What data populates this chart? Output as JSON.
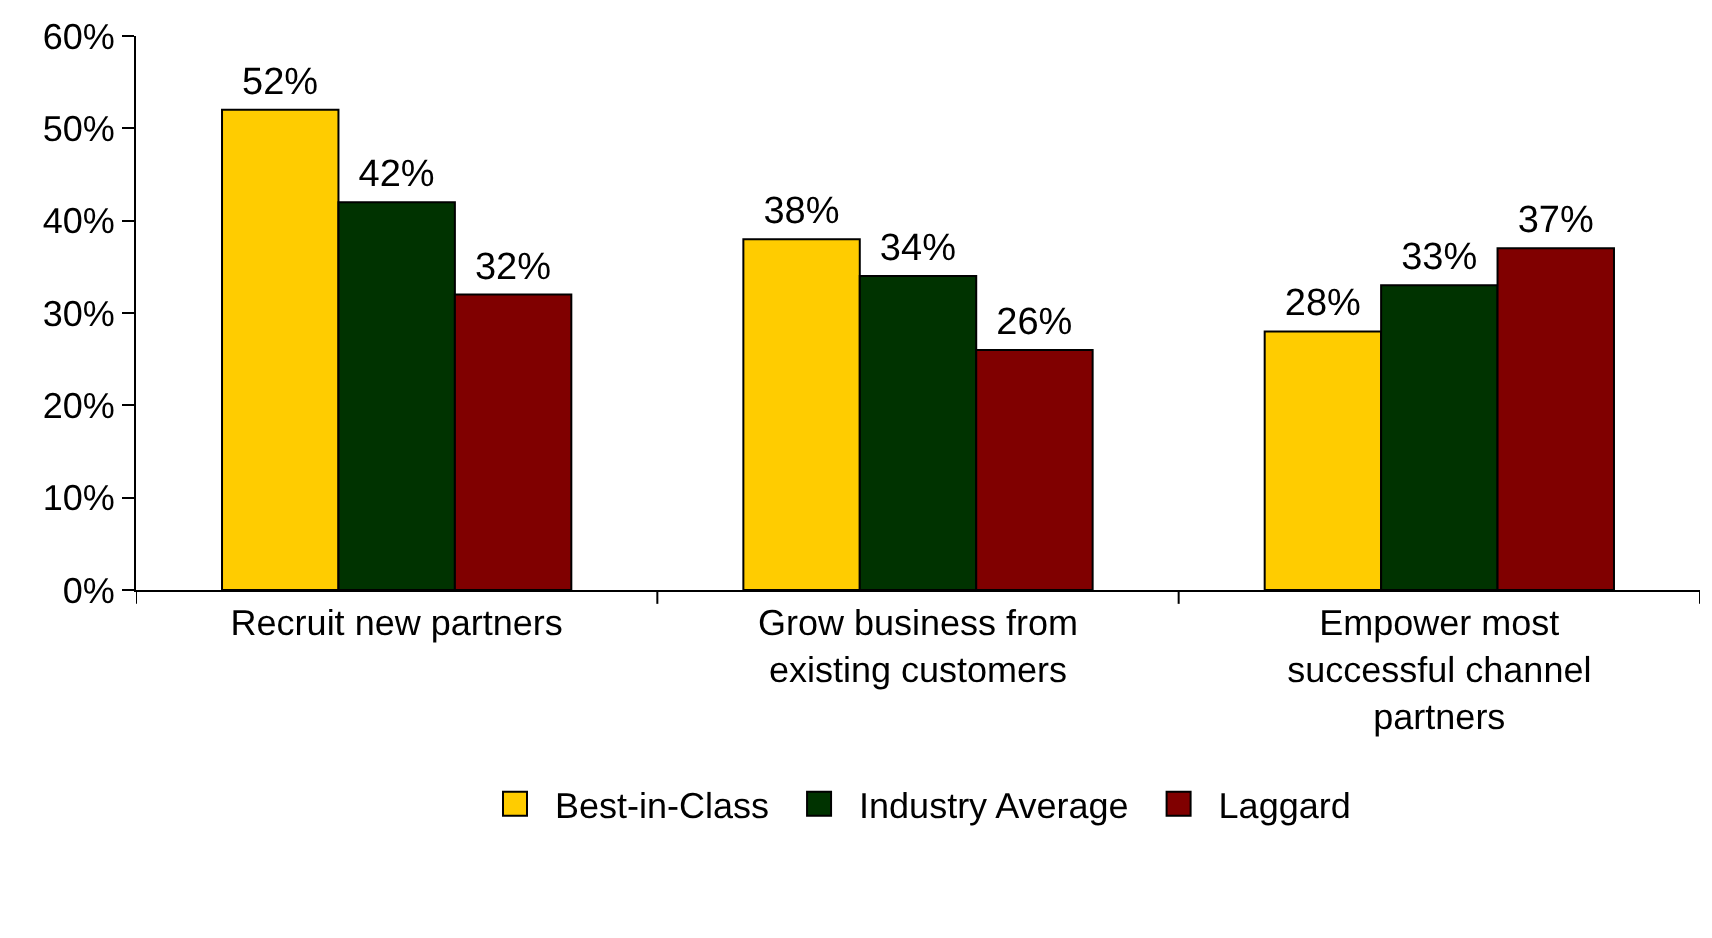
{
  "chart_data": {
    "type": "bar",
    "categories": [
      "Recruit new partners",
      "Grow business from existing customers",
      "Empower most successful channel partners"
    ],
    "series": [
      {
        "name": "Best-in-Class",
        "color": "#ffcc00",
        "values": [
          52,
          38,
          28
        ],
        "value_labels": [
          "52%",
          "38%",
          "28%"
        ]
      },
      {
        "name": "Industry Average",
        "color": "#003300",
        "values": [
          42,
          34,
          33
        ],
        "value_labels": [
          "42%",
          "34%",
          "33%"
        ]
      },
      {
        "name": "Laggard",
        "color": "#800000",
        "values": [
          32,
          26,
          37
        ],
        "value_labels": [
          "32%",
          "26%",
          "37%"
        ]
      }
    ],
    "ylim": [
      0,
      60
    ],
    "yticks": [
      {
        "value": 0,
        "label": "0%"
      },
      {
        "value": 10,
        "label": "10%"
      },
      {
        "value": 20,
        "label": "20%"
      },
      {
        "value": 30,
        "label": "30%"
      },
      {
        "value": 40,
        "label": "40%"
      },
      {
        "value": 50,
        "label": "50%"
      },
      {
        "value": 60,
        "label": "60%"
      }
    ],
    "grid": false,
    "legend": "bottom"
  }
}
